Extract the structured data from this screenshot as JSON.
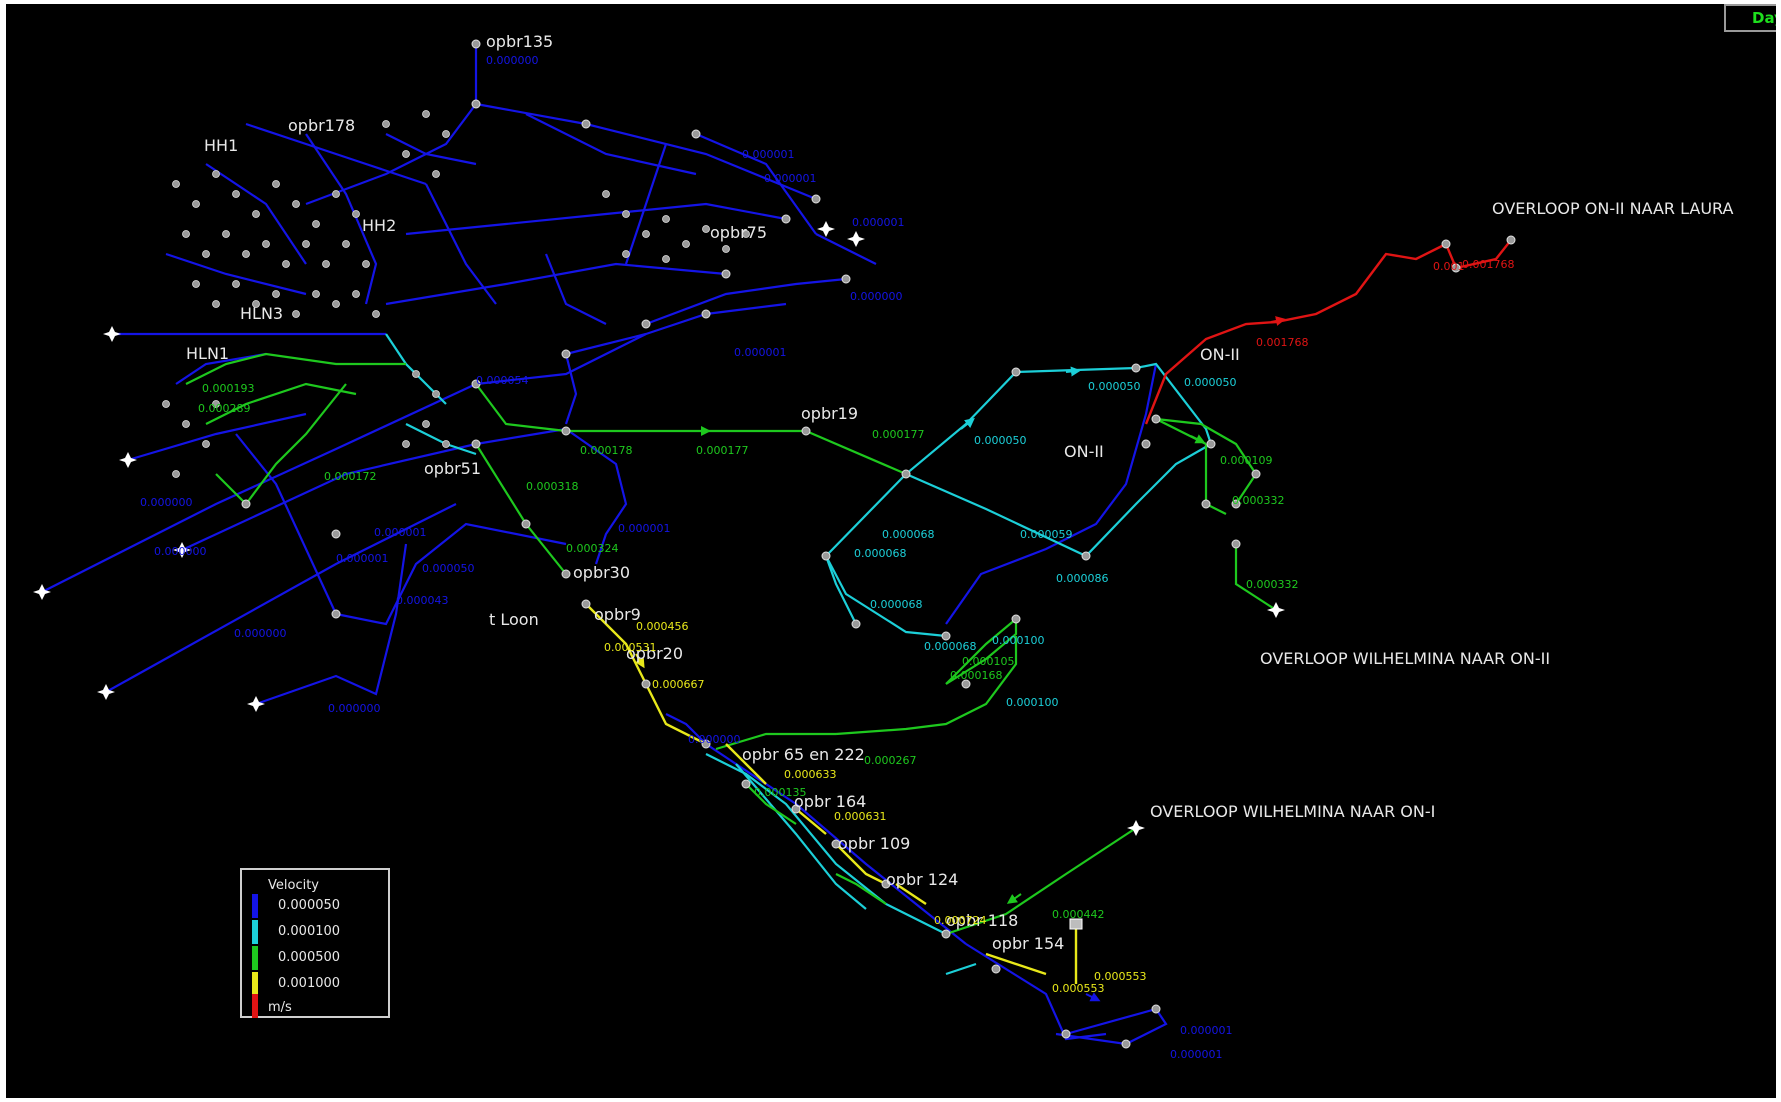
{
  "view_tab": "Day",
  "palette": {
    "blue": "#1414e6",
    "cyan": "#1ccfd8",
    "green": "#1ec81e",
    "yellow": "#e8e81a",
    "red": "#e01414",
    "node": "#9a9a9a",
    "background": "#000000"
  },
  "labels": {
    "overloop_laura": "OVERLOOP ON-II NAAR LAURA",
    "overloop_wilhelmina_on2": "OVERLOOP WILHELMINA NAAR ON-II",
    "overloop_wilhelmina_on1": "OVERLOOP WILHELMINA NAAR ON-I",
    "on2_a": "ON-II",
    "on2_b": "ON-II",
    "t_loon": "t Loon",
    "opbr135": "opbr135",
    "opbr178": "opbr178",
    "hh1": "HH1",
    "hh2": "HH2",
    "hln3": "HLN3",
    "hln1": "HLN1",
    "opbr19": "opbr19",
    "opbr30": "opbr30",
    "opbr9": "opbr9",
    "opbr20": "opbr20",
    "opbr65_222": "opbr 65 en 222",
    "opbr164": "opbr 164",
    "opbr109": "opbr 109",
    "opbr124": "opbr 124",
    "opbr118": "opbr 118",
    "opbr154": "opbr 154",
    "opbr75": "opbr75",
    "opbr51": "opbr51"
  },
  "values": {
    "v_red1": "0.001768",
    "v_red2": "0.001768",
    "v_red3": "0.001",
    "v_cyan1": "0.000050",
    "v_cyan2": "0.000050",
    "v_cyan3": "0.000050",
    "v_cyan4": "0.000059",
    "v_cyan5": "0.000068",
    "v_cyan6": "0.000068",
    "v_cyan7": "0.000068",
    "v_cyan8": "0.000068",
    "v_cyan9": "0.000100",
    "v_cyan10": "0.000100",
    "v_cyan11": "0.000086",
    "v_green1": "0.000177",
    "v_green2": "0.000177",
    "v_green3": "0.000178",
    "v_green4": "0.000109",
    "v_green5": "0.000332",
    "v_green6": "0.000332",
    "v_green7": "0.000267",
    "v_green8": "0.000442",
    "v_green9": "0.000168",
    "v_green10": "0.000105",
    "v_green11": "0.000318",
    "v_green12": "0.000324",
    "v_green13": "0.000289",
    "v_green14": "0.000193",
    "v_green15": "0.000172",
    "v_green16": "0.000135",
    "v_yellow1": "0.000667",
    "v_yellow2": "0.000456",
    "v_yellow3": "0.000531",
    "v_yellow4": "0.000633",
    "v_yellow5": "0.000631",
    "v_yellow6": "0.000724",
    "v_yellow7": "0.000553",
    "v_yellow8": "0.000553",
    "v_blue1": "0.000000",
    "v_blue2": "0.000000",
    "v_blue3": "0.000000",
    "v_blue4": "0.000001",
    "v_blue5": "0.000001",
    "v_blue6": "0.000001",
    "v_blue7": "0.000043",
    "v_blue8": "0.000050",
    "v_blue9": "0.000000",
    "v_blue10": "0.000001",
    "v_blue11": "0.000001",
    "v_blue12": "0.000054",
    "v_blue13": "0.000001",
    "v_blue14": "0.000000",
    "v_blue15": "0.000000",
    "v_blue16": "0.000001",
    "v_blue17": "0.000000",
    "v_blue18": "0.000001",
    "v_blue19": "0.000001"
  },
  "legend": {
    "title": "Velocity",
    "unit": "m/s",
    "entries": [
      {
        "label": "0.000050",
        "color": "#1414e6"
      },
      {
        "label": "0.000100",
        "color": "#1ccfd8"
      },
      {
        "label": "0.000500",
        "color": "#1ec81e"
      },
      {
        "label": "0.001000",
        "color": "#e8e81a"
      },
      {
        "label": "m/s",
        "color": "#e01414"
      }
    ]
  }
}
